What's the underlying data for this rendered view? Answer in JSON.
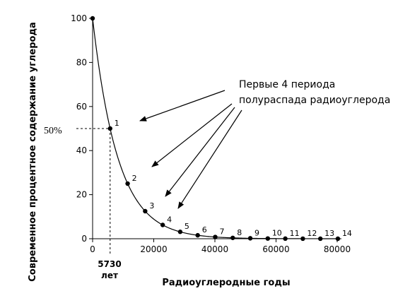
{
  "chart_data": {
    "type": "line",
    "title": "",
    "xlabel": "Радиоуглеродные годы",
    "ylabel": "Современное процентное содержание углерода",
    "xlim": [
      0,
      80000
    ],
    "ylim": [
      0,
      100
    ],
    "xticks": [
      "0",
      "20000",
      "40000",
      "60000",
      "80000"
    ],
    "xtick_values": [
      0,
      20000,
      40000,
      60000,
      80000
    ],
    "yticks": [
      "0",
      "20",
      "40",
      "60",
      "80",
      "100"
    ],
    "ytick_values": [
      0,
      20,
      40,
      60,
      80,
      100
    ],
    "grid": false,
    "series": [
      {
        "x": [
          0,
          5730,
          11460,
          17190,
          22920,
          28650,
          34380,
          40110,
          45840,
          51570,
          57300,
          63030,
          68760,
          74490,
          80220
        ],
        "y": [
          100,
          50,
          25,
          12.5,
          6.25,
          3.13,
          1.56,
          0.78,
          0.39,
          0.2,
          0.1,
          0.05,
          0.02,
          0.01,
          0.01
        ],
        "point_labels": [
          "",
          "1",
          "2",
          "3",
          "4",
          "5",
          "6",
          "7",
          "8",
          "9",
          "10",
          "11",
          "12",
          "13",
          "14"
        ]
      }
    ],
    "annotations": {
      "half_level": "50%",
      "half_life_value": "5730",
      "half_life_unit": "лет",
      "callout_line1": "Первые 4 периода",
      "callout_line2": "полураспада радиоуглерода"
    }
  }
}
